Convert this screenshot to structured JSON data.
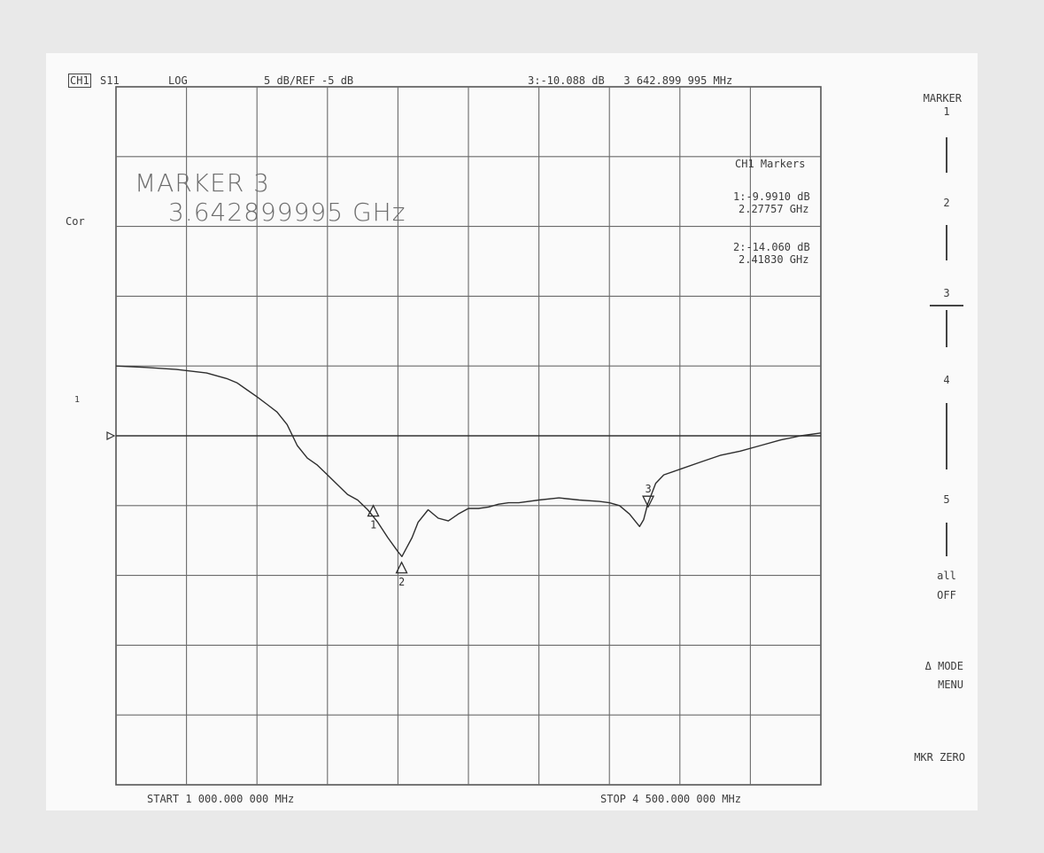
{
  "header": {
    "channel": "CH1",
    "parameter": "S11",
    "format": "LOG",
    "scale_ref": "5 dB/REF -5 dB",
    "active_marker_readout": "3:-10.088 dB   3 642.899 995 MHz"
  },
  "side_labels": {
    "correction": "Cor",
    "ref_level_marker": "1"
  },
  "active_marker_box": {
    "title": "MARKER 3",
    "frequency": "3.642899995 GHz"
  },
  "marker_table": {
    "title": "CH1 Markers",
    "m1_value": "1:-9.9910 dB",
    "m1_freq": "2.27757 GHz",
    "m2_value": "2:-14.060 dB",
    "m2_freq": "2.41830 GHz"
  },
  "footer": {
    "start": "START 1 000.000 000 MHz",
    "stop": "STOP 4 500.000 000 MHz"
  },
  "softkeys": {
    "title_line1": "MARKER",
    "m1": "1",
    "m2": "2",
    "m3": "3",
    "m4": "4",
    "m5": "5",
    "all_off_line1": "all",
    "all_off_line2": "OFF",
    "delta_mode_line1": "Δ MODE",
    "delta_mode_line2": "MENU",
    "mkr_zero": "MKR ZERO",
    "active_marker": 3
  },
  "chart_data": {
    "type": "line",
    "title": "",
    "xlabel": "",
    "ylabel": "",
    "x_unit": "MHz",
    "y_unit": "dB",
    "xlim": [
      1000,
      4500
    ],
    "ylim": [
      -30,
      20
    ],
    "reference_level": -5,
    "grid": true,
    "grid_divisions": {
      "x": 10,
      "y": 10
    },
    "series": [
      {
        "name": "S11",
        "x": [
          1000,
          1150,
          1300,
          1450,
          1550,
          1600,
          1650,
          1700,
          1750,
          1800,
          1850,
          1900,
          1950,
          2000,
          2050,
          2100,
          2150,
          2200,
          2250,
          2300,
          2350,
          2400,
          2420,
          2440,
          2470,
          2500,
          2550,
          2600,
          2650,
          2700,
          2750,
          2800,
          2850,
          2900,
          2950,
          3000,
          3100,
          3200,
          3300,
          3400,
          3450,
          3500,
          3550,
          3600,
          3620,
          3640,
          3680,
          3720,
          3800,
          3900,
          4000,
          4100,
          4200,
          4300,
          4400,
          4500
        ],
        "y": [
          0,
          -0.1,
          -0.25,
          -0.5,
          -0.9,
          -1.2,
          -1.7,
          -2.2,
          -2.75,
          -3.3,
          -4.2,
          -5.7,
          -6.6,
          -7.1,
          -7.8,
          -8.5,
          -9.2,
          -9.6,
          -10.3,
          -11.2,
          -12.3,
          -13.3,
          -13.65,
          -13.1,
          -12.3,
          -11.2,
          -10.3,
          -10.9,
          -11.1,
          -10.6,
          -10.2,
          -10.2,
          -10.1,
          -9.9,
          -9.8,
          -9.8,
          -9.6,
          -9.45,
          -9.6,
          -9.7,
          -9.8,
          -10.0,
          -10.6,
          -11.5,
          -11.0,
          -9.9,
          -8.4,
          -7.8,
          -7.4,
          -6.9,
          -6.4,
          -6.1,
          -5.7,
          -5.3,
          -5.0,
          -4.8
        ]
      }
    ],
    "markers": [
      {
        "label": "1",
        "x": 2277.57,
        "y": -9.991,
        "direction": "up"
      },
      {
        "label": "2",
        "x": 2418.3,
        "y": -14.06,
        "direction": "up"
      },
      {
        "label": "3",
        "x": 3642.9,
        "y": -10.088,
        "direction": "down"
      }
    ]
  }
}
